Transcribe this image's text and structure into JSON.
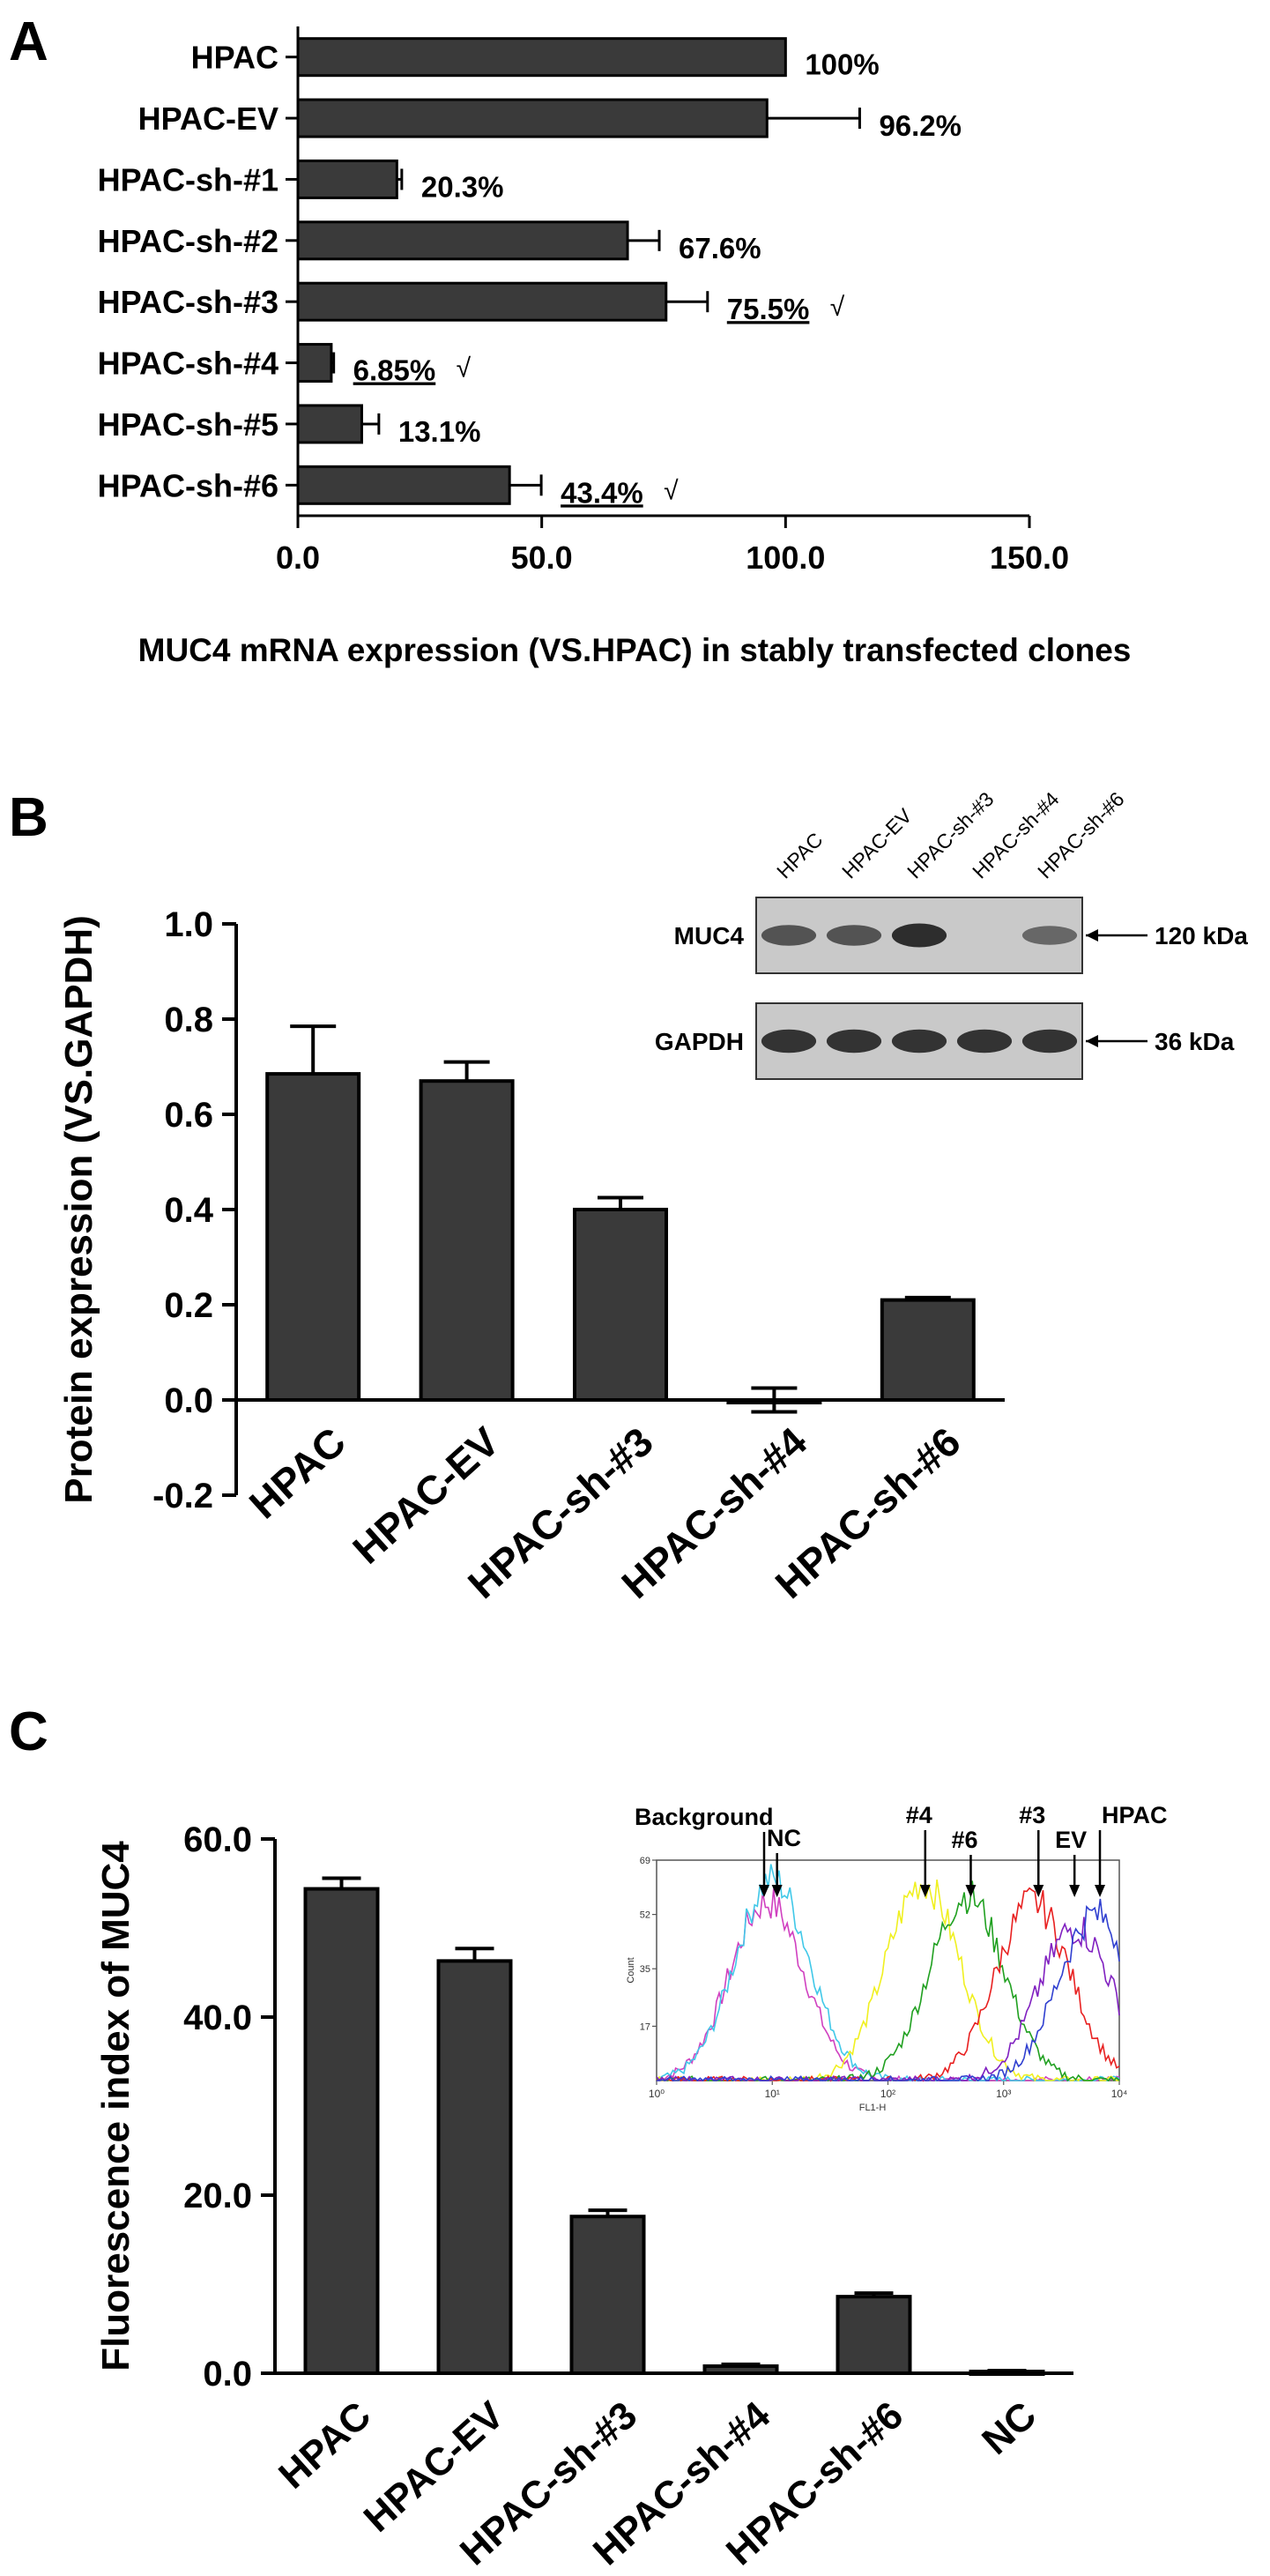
{
  "panels": {
    "A": {
      "letter": "A"
    },
    "B": {
      "letter": "B"
    },
    "C": {
      "letter": "C"
    }
  },
  "chart_data": [
    {
      "panel": "A",
      "type": "bar",
      "orientation": "horizontal",
      "categories": [
        "HPAC",
        "HPAC-EV",
        "HPAC-sh-#1",
        "HPAC-sh-#2",
        "HPAC-sh-#3",
        "HPAC-sh-#4",
        "HPAC-sh-#5",
        "HPAC-sh-#6"
      ],
      "values": [
        100,
        96.2,
        20.3,
        67.6,
        75.5,
        6.85,
        13.1,
        43.4
      ],
      "errors": [
        0,
        19,
        1.0,
        6.5,
        8.5,
        0.5,
        3.5,
        6.5
      ],
      "value_labels": [
        "100%",
        "96.2%",
        "20.3%",
        "67.6%",
        "75.5%",
        "6.85%",
        "13.1%",
        "43.4%"
      ],
      "underlined": [
        false,
        false,
        false,
        false,
        true,
        true,
        false,
        true
      ],
      "checked": [
        false,
        false,
        false,
        false,
        true,
        true,
        false,
        true
      ],
      "check_mark": "√",
      "xlabel": "MUC4 mRNA expression (VS.HPAC) in stably transfected clones",
      "ylabel": "",
      "xlim": [
        0,
        150
      ],
      "xticks": [
        "0.0",
        "50.0",
        "100.0",
        "150.0"
      ],
      "grid": false,
      "bar_color": "#3a3a3a"
    },
    {
      "panel": "B",
      "type": "bar",
      "categories": [
        "HPAC",
        "HPAC-EV",
        "HPAC-sh-#3",
        "HPAC-sh-#4",
        "HPAC-sh-#6"
      ],
      "values": [
        0.685,
        0.67,
        0.4,
        0.0,
        0.21
      ],
      "errors": [
        0.1,
        0.04,
        0.025,
        0.025,
        0.005
      ],
      "xlabel": "",
      "ylabel": "Protein expression (VS.GAPDH)",
      "ylim": [
        -0.2,
        1.0
      ],
      "yticks": [
        "-0.2",
        "0.0",
        "0.2",
        "0.4",
        "0.6",
        "0.8",
        "1.0"
      ],
      "grid": false,
      "bar_color": "#3a3a3a",
      "inset_blot": {
        "lanes": [
          "HPAC",
          "HPAC-EV",
          "HPAC-sh-#3",
          "HPAC-sh-#4",
          "HPAC-sh-#6"
        ],
        "rows": [
          {
            "label": "MUC4",
            "marker": "120 kDa",
            "intensity": [
              0.55,
              0.55,
              0.9,
              0.0,
              0.35
            ]
          },
          {
            "label": "GAPDH",
            "marker": "36 kDa",
            "intensity": [
              0.85,
              0.85,
              0.85,
              0.85,
              0.85
            ]
          }
        ]
      }
    },
    {
      "panel": "C",
      "type": "bar",
      "categories": [
        "HPAC",
        "HPAC-EV",
        "HPAC-sh-#3",
        "HPAC-sh-#4",
        "HPAC-sh-#6",
        "NC"
      ],
      "values": [
        54.4,
        46.3,
        17.6,
        0.8,
        8.6,
        0.2
      ],
      "errors": [
        1.2,
        1.4,
        0.7,
        0.2,
        0.4,
        0.1
      ],
      "xlabel": "",
      "ylabel": "Fluorescence index of MUC4",
      "ylim": [
        0,
        60
      ],
      "yticks": [
        "0.0",
        "20.0",
        "40.0",
        "60.0"
      ],
      "grid": false,
      "bar_color": "#3a3a3a",
      "inset_histogram": {
        "type": "line",
        "xscale": "log",
        "xlabel": "FL1-H",
        "ylabel": "Count",
        "xlim": [
          1,
          10000
        ],
        "ylim": [
          0,
          69
        ],
        "yticks": [
          "17",
          "35",
          "52",
          "69"
        ],
        "xticks": [
          "10⁰",
          "10¹",
          "10²",
          "10³",
          "10⁴"
        ],
        "annotations": [
          "Background",
          "NC",
          "#4",
          "#6",
          "#3",
          "EV",
          "HPAC"
        ],
        "series": [
          {
            "annotation": "Background",
            "color": "#d040c0",
            "peak": 9,
            "height": 56
          },
          {
            "annotation": "NC",
            "color": "#40c8e8",
            "peak": 10,
            "height": 63
          },
          {
            "annotation": "#4",
            "color": "#f0f020",
            "peak": 200,
            "height": 62
          },
          {
            "annotation": "#6",
            "color": "#20a020",
            "peak": 480,
            "height": 58
          },
          {
            "annotation": "#3",
            "color": "#e82020",
            "peak": 1800,
            "height": 56
          },
          {
            "annotation": "EV",
            "color": "#8020c0",
            "peak": 4200,
            "height": 48
          },
          {
            "annotation": "HPAC",
            "color": "#3040d0",
            "peak": 6200,
            "height": 52
          }
        ]
      }
    }
  ]
}
